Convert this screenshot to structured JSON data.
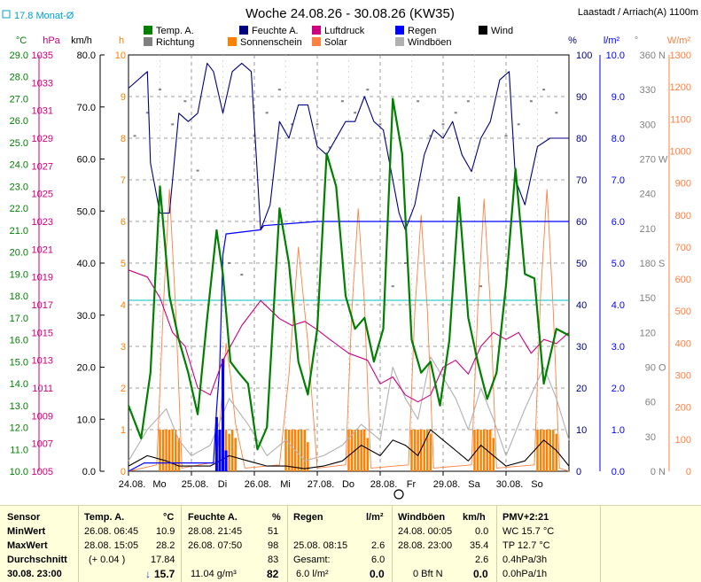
{
  "header": {
    "title": "Woche 24.08.26 - 30.08.26 (KW35)",
    "location": "Laastadt / Arriach(A) 1100m",
    "monat_label": "17.8 Monat-Ø"
  },
  "legend": [
    {
      "label": "Temp. A.",
      "color": "#007f00"
    },
    {
      "label": "Richtung",
      "color": "#808080"
    },
    {
      "label": "Feuchte A.",
      "color": "#00007f"
    },
    {
      "label": "Sonnenschein",
      "color": "#ff8000"
    },
    {
      "label": "Luftdruck",
      "color": "#cc0080"
    },
    {
      "label": "Solar",
      "color": "#ff8040"
    },
    {
      "label": "Regen",
      "color": "#0000ff"
    },
    {
      "label": "Windböen",
      "color": "#b0b0b0"
    },
    {
      "label": "Wind",
      "color": "#000000"
    }
  ],
  "axes": {
    "left": [
      {
        "unit": "°C",
        "color": "#007f00",
        "ticks": [
          "29.0",
          "28.0",
          "27.0",
          "26.0",
          "25.0",
          "24.0",
          "23.0",
          "22.0",
          "21.0",
          "20.0",
          "19.0",
          "18.0",
          "17.0",
          "16.0",
          "15.0",
          "14.0",
          "13.0",
          "12.0",
          "11.0",
          "10.0"
        ]
      },
      {
        "unit": "hPa",
        "color": "#cc0080",
        "ticks": [
          "1035",
          "1033",
          "1031",
          "1029",
          "1027",
          "1025",
          "1023",
          "1021",
          "1019",
          "1017",
          "1015",
          "1013",
          "1011",
          "1009",
          "1007",
          "1005"
        ]
      },
      {
        "unit": "km/h",
        "color": "#000000",
        "ticks": [
          "80.0",
          "70.0",
          "60.0",
          "50.0",
          "40.0",
          "30.0",
          "20.0",
          "10.0",
          "0.0"
        ]
      },
      {
        "unit": "h",
        "color": "#ff8000",
        "ticks": [
          "10",
          "9",
          "8",
          "7",
          "6",
          "5",
          "4",
          "3",
          "2",
          "1",
          "0"
        ]
      }
    ],
    "right": [
      {
        "unit": "%",
        "color": "#00007f",
        "ticks": [
          "100",
          "90",
          "80",
          "70",
          "60",
          "50",
          "40",
          "30",
          "20",
          "10",
          "0"
        ]
      },
      {
        "unit": "l/m²",
        "color": "#0000ff",
        "ticks": [
          "10.0",
          "9.0",
          "8.0",
          "7.0",
          "6.0",
          "5.0",
          "4.0",
          "3.0",
          "2.0",
          "1.0",
          "0.0"
        ]
      },
      {
        "unit": "°",
        "color": "#808080",
        "ticks": [
          "360",
          "330",
          "300",
          "270",
          "240",
          "210",
          "180",
          "150",
          "120",
          "90",
          "60",
          "30",
          "0"
        ],
        "compass": [
          "N",
          "",
          "",
          "W",
          "",
          "",
          "S",
          "",
          "",
          "O",
          "",
          "",
          "N"
        ]
      },
      {
        "unit": "W/m²",
        "color": "#ff8040",
        "ticks": [
          "1300",
          "1200",
          "1100",
          "1000",
          "900",
          "800",
          "700",
          "600",
          "500",
          "400",
          "300",
          "200",
          "100",
          "0"
        ]
      }
    ],
    "x_ticks": [
      "24.08.",
      "Mo",
      "25.08.",
      "Di",
      "26.08.",
      "Mi",
      "27.08.",
      "Do",
      "28.08.",
      "Fr",
      "29.08.",
      "Sa",
      "30.08.",
      "So"
    ]
  },
  "chart_data": {
    "type": "line",
    "x_unit": "day of week (0 = 24.08. 00:00)",
    "xlim": [
      0,
      7
    ],
    "monat_mean_temp": 17.8,
    "series": [
      {
        "name": "Temp. A.",
        "unit": "°C",
        "color": "#007f00",
        "ylim": [
          10,
          29
        ],
        "x": [
          0,
          0.2,
          0.35,
          0.5,
          0.65,
          0.8,
          0.95,
          1.1,
          1.25,
          1.4,
          1.5,
          1.62,
          1.75,
          1.9,
          2.05,
          2.2,
          2.4,
          2.55,
          2.7,
          2.85,
          3.0,
          3.15,
          3.3,
          3.45,
          3.6,
          3.75,
          3.9,
          4.05,
          4.2,
          4.35,
          4.5,
          4.65,
          4.8,
          4.95,
          5.1,
          5.25,
          5.4,
          5.55,
          5.7,
          5.85,
          6.0,
          6.15,
          6.3,
          6.45,
          6.6,
          6.8,
          7.0
        ],
        "values": [
          13,
          11.5,
          14.5,
          23,
          18,
          16,
          14.5,
          12.6,
          17,
          21,
          19,
          15,
          14.5,
          14,
          11,
          12,
          22,
          19.5,
          15,
          13.5,
          16.5,
          24.5,
          23,
          18,
          16.5,
          17,
          15,
          16.5,
          27,
          24.5,
          16,
          14.5,
          15,
          13,
          16,
          22.5,
          17,
          15,
          13.3,
          14.5,
          18.5,
          23.8,
          19,
          18.8,
          14,
          16.5,
          16.2
        ]
      },
      {
        "name": "Feuchte A.",
        "unit": "%",
        "color": "#00007f",
        "ylim": [
          0,
          100
        ],
        "x": [
          0,
          0.3,
          0.35,
          0.5,
          0.65,
          0.8,
          0.95,
          1.1,
          1.25,
          1.35,
          1.5,
          1.65,
          1.8,
          1.95,
          2.1,
          2.25,
          2.4,
          2.55,
          2.7,
          2.85,
          3.0,
          3.15,
          3.3,
          3.45,
          3.6,
          3.75,
          3.9,
          4.05,
          4.2,
          4.3,
          4.4,
          4.55,
          4.7,
          4.85,
          5.0,
          5.15,
          5.3,
          5.45,
          5.6,
          5.75,
          5.9,
          6.05,
          6.15,
          6.3,
          6.5,
          6.7,
          7.0
        ],
        "values": [
          92,
          96,
          74,
          62,
          62,
          86,
          84,
          86,
          98,
          96,
          86,
          96,
          98,
          96,
          58,
          64,
          84,
          80,
          88,
          88,
          78,
          76,
          80,
          84,
          84,
          90,
          84,
          82,
          70,
          62,
          58,
          64,
          76,
          82,
          80,
          84,
          76,
          72,
          80,
          84,
          94,
          96,
          70,
          64,
          78,
          80,
          80
        ]
      },
      {
        "name": "Luftdruck",
        "unit": "hPa",
        "color": "#cc0080",
        "ylim": [
          1005,
          1035
        ],
        "x": [
          0,
          0.3,
          0.5,
          0.7,
          0.9,
          1.1,
          1.3,
          1.5,
          1.8,
          2.1,
          2.4,
          2.6,
          2.8,
          3.0,
          3.2,
          3.5,
          3.8,
          4.0,
          4.2,
          4.4,
          4.6,
          4.8,
          5.0,
          5.2,
          5.4,
          5.6,
          5.8,
          6.0,
          6.2,
          6.4,
          6.6,
          6.8,
          7.0
        ],
        "values": [
          1019.5,
          1019,
          1017.5,
          1015,
          1014,
          1011,
          1010.5,
          1013,
          1015.5,
          1017.3,
          1016,
          1015.5,
          1015.8,
          1015.2,
          1014.5,
          1013.5,
          1013,
          1011.3,
          1011.8,
          1010.5,
          1010,
          1010.5,
          1012.5,
          1013,
          1012,
          1014,
          1015,
          1014.5,
          1015,
          1013.5,
          1014.5,
          1014.2,
          1015
        ]
      },
      {
        "name": "Solar",
        "unit": "W/m²",
        "color": "#ff8040",
        "ylim": [
          0,
          1300
        ],
        "x": [
          0,
          0.45,
          0.55,
          0.65,
          0.75,
          0.85,
          1.4,
          1.55,
          1.62,
          1.7,
          1.85,
          2.4,
          2.55,
          2.7,
          2.85,
          3.0,
          3.45,
          3.55,
          3.65,
          3.75,
          3.85,
          4.45,
          4.55,
          4.65,
          4.75,
          4.85,
          5.45,
          5.55,
          5.65,
          5.75,
          5.85,
          6.45,
          6.55,
          6.65,
          6.75,
          6.85,
          7.0
        ],
        "values": [
          0,
          20,
          500,
          880,
          500,
          10,
          30,
          400,
          300,
          150,
          10,
          20,
          300,
          700,
          400,
          10,
          20,
          500,
          820,
          520,
          10,
          20,
          500,
          800,
          500,
          10,
          20,
          500,
          850,
          520,
          10,
          20,
          550,
          880,
          500,
          10,
          0
        ]
      },
      {
        "name": "Sonnenschein",
        "unit": "h",
        "color": "#ff8000",
        "ylim": [
          0,
          10
        ],
        "x": [
          0.5,
          0.55,
          0.6,
          0.65,
          0.7,
          0.75,
          0.8,
          1.55,
          1.6,
          1.65,
          1.7,
          2.5,
          2.55,
          2.6,
          2.65,
          2.7,
          2.75,
          2.8,
          2.85,
          3.5,
          3.55,
          3.6,
          3.65,
          3.7,
          3.75,
          3.8,
          4.5,
          4.55,
          4.6,
          4.65,
          4.7,
          4.75,
          4.8,
          5.5,
          5.55,
          5.6,
          5.65,
          5.7,
          5.75,
          5.8,
          6.5,
          6.55,
          6.6,
          6.65,
          6.7,
          6.75,
          6.8
        ],
        "values": [
          1,
          1,
          1,
          1,
          1,
          1,
          0.8,
          1,
          0.9,
          1,
          0.8,
          1,
          1,
          1,
          1,
          1,
          1,
          1,
          0.7,
          1,
          1,
          1,
          1,
          1,
          1,
          0.8,
          1,
          1,
          1,
          1,
          1,
          1,
          0.9,
          1,
          1,
          1,
          1,
          1,
          1,
          0.8,
          1,
          1,
          1,
          1,
          1,
          1,
          0.9
        ]
      },
      {
        "name": "Regen",
        "unit": "l/m²",
        "color": "#0000ff",
        "ylim": [
          0,
          10
        ],
        "x": [
          0,
          0.25,
          1.35,
          1.4,
          1.45,
          1.5,
          1.55,
          2.1,
          2.15,
          3.0,
          4.0,
          5.0,
          6.0,
          7.0
        ],
        "values": [
          0,
          0.2,
          0.2,
          1.5,
          2.5,
          5.2,
          5.7,
          5.8,
          5.9,
          6.0,
          6.0,
          6.0,
          6.0,
          6.0
        ]
      },
      {
        "name": "Windböen",
        "unit": "km/h",
        "color": "#b0b0b0",
        "ylim": [
          0,
          80
        ],
        "x": [
          0,
          0.3,
          0.6,
          0.8,
          1.0,
          1.3,
          1.6,
          1.9,
          2.2,
          2.5,
          2.8,
          3.1,
          3.4,
          3.7,
          4.0,
          4.2,
          4.4,
          4.6,
          4.8,
          5.0,
          5.2,
          5.4,
          5.6,
          5.8,
          6.0,
          6.3,
          6.6,
          6.8,
          7.0
        ],
        "values": [
          2,
          8,
          12,
          6,
          3,
          5,
          14,
          9,
          3,
          6,
          2,
          3,
          5,
          9,
          6,
          20,
          14,
          10,
          22,
          18,
          14,
          8,
          16,
          10,
          3,
          12,
          20,
          14,
          6
        ]
      },
      {
        "name": "Wind",
        "unit": "km/h",
        "color": "#000000",
        "ylim": [
          0,
          80
        ],
        "x": [
          0,
          0.3,
          0.6,
          0.8,
          1.0,
          1.3,
          1.6,
          1.9,
          2.2,
          2.5,
          2.8,
          3.1,
          3.4,
          3.7,
          4.0,
          4.2,
          4.4,
          4.6,
          4.8,
          5.0,
          5.2,
          5.4,
          5.6,
          5.8,
          6.0,
          6.3,
          6.6,
          6.8,
          7.0
        ],
        "values": [
          1,
          3,
          2,
          1,
          1,
          1,
          3,
          2,
          1,
          1,
          0.5,
          1,
          2,
          5,
          3,
          6,
          5,
          3,
          8,
          6,
          4,
          2,
          5,
          3,
          1,
          2,
          6,
          4,
          1
        ]
      },
      {
        "name": "Richtung",
        "unit": "°",
        "color": "#808080",
        "ylim": [
          0,
          360
        ],
        "x": [
          0.1,
          0.3,
          0.5,
          0.7,
          0.9,
          1.1,
          1.6,
          1.8,
          2.0,
          2.2,
          2.4,
          2.6,
          3.0,
          3.2,
          3.4,
          3.6,
          3.8,
          4.0,
          4.2,
          4.4,
          4.6,
          4.8,
          5.0,
          5.2,
          5.4,
          5.6,
          6.0,
          6.2,
          6.4,
          6.6,
          6.8
        ],
        "values": [
          290,
          310,
          330,
          300,
          320,
          260,
          180,
          170,
          290,
          310,
          330,
          300,
          300,
          280,
          320,
          310,
          330,
          300,
          160,
          180,
          320,
          290,
          300,
          310,
          320,
          160,
          290,
          300,
          320,
          330,
          310
        ]
      }
    ]
  },
  "stats": {
    "headers": {
      "sensor": "Sensor",
      "temp": "Temp. A.",
      "temp_unit": "°C",
      "feuchte": "Feuchte A.",
      "feuchte_unit": "%",
      "regen": "Regen",
      "regen_unit": "l/m²",
      "wind": "Windböen",
      "wind_unit": "km/h",
      "pmv": "PMV+2:21"
    },
    "row_labels": [
      "MinWert",
      "MaxWert",
      "Durchschnitt",
      "30.08. 23:00"
    ],
    "temp": [
      [
        "26.08.   06:45",
        "10.9"
      ],
      [
        "28.08.   15:05",
        "28.2"
      ],
      [
        "(+ 0.04 )",
        "17.84"
      ],
      [
        "",
        "15.7"
      ]
    ],
    "feuchte": [
      [
        "28.08.   21:45",
        "51"
      ],
      [
        "26.08.   07:50",
        "98"
      ],
      [
        "",
        "83"
      ],
      [
        "11.04 g/m³",
        "82"
      ]
    ],
    "regen": [
      [
        "",
        ""
      ],
      [
        "25.08.   08:15",
        "2.6"
      ],
      [
        "Gesamt:",
        "6.0"
      ],
      [
        "6.0 l/m²",
        "0.0"
      ]
    ],
    "wind": [
      [
        "24.08.   00:05",
        "0.0"
      ],
      [
        "28.08.   23:00",
        "35.4"
      ],
      [
        "",
        "2.6"
      ],
      [
        "0 Bft N",
        "0.0"
      ]
    ],
    "pmv": [
      "WC 15.7 °C",
      "TP 12.7 °C",
      "0.4hPa/3h",
      "0.0hPa/1h"
    ]
  }
}
